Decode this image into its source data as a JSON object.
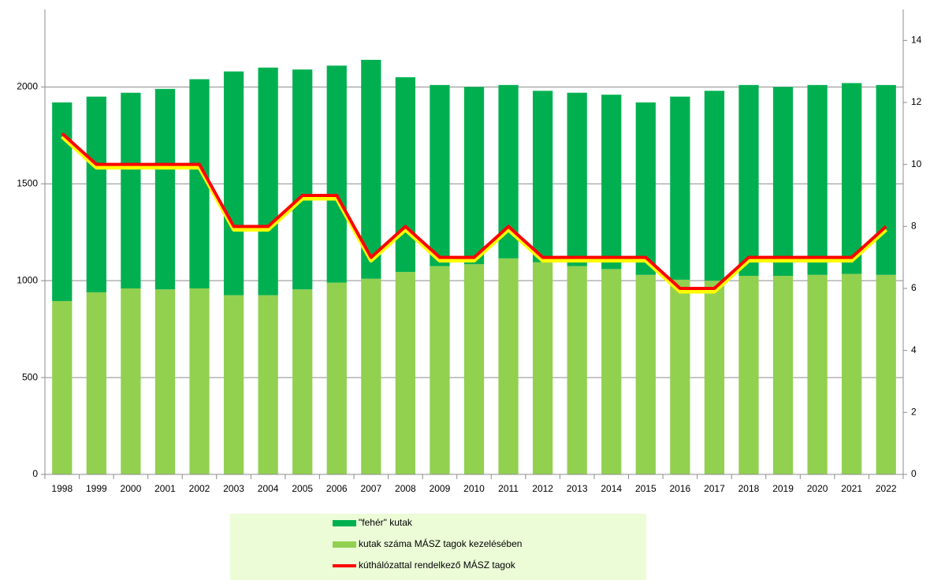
{
  "chart_data": {
    "type": "bar_line",
    "categories": [
      "1998",
      "1999",
      "2000",
      "2001",
      "2002",
      "2003",
      "2004",
      "2005",
      "2006",
      "2007",
      "2008",
      "2009",
      "2010",
      "2011",
      "2012",
      "2013",
      "2014",
      "2015",
      "2016",
      "2017",
      "2018",
      "2019",
      "2020",
      "2021",
      "2022"
    ],
    "series": [
      {
        "name": "kutak száma MÁSZ tagok kezelésében",
        "type": "bar",
        "color": "#92d050",
        "values": [
          895,
          940,
          960,
          955,
          960,
          925,
          925,
          955,
          990,
          1010,
          1045,
          1075,
          1085,
          1115,
          1095,
          1075,
          1060,
          1030,
          1005,
          1000,
          1025,
          1025,
          1030,
          1035,
          1030
        ]
      },
      {
        "name": "\"fehér\" kutak",
        "type": "bar",
        "color": "#00b050",
        "values": [
          1025,
          1010,
          1010,
          1035,
          1080,
          1155,
          1175,
          1135,
          1120,
          1130,
          1005,
          935,
          915,
          895,
          885,
          895,
          900,
          890,
          945,
          980,
          985,
          975,
          980,
          985,
          980
        ]
      },
      {
        "name": "kúthálózattal rendelkező MÁSZ tagok",
        "type": "line",
        "axis": "y2",
        "color": "#ff0000",
        "shadow_color": "#ffff00",
        "values": [
          11,
          10,
          10,
          10,
          10,
          8,
          8,
          9,
          9,
          7,
          8,
          7,
          7,
          8,
          7,
          7,
          7,
          7,
          6,
          6,
          7,
          7,
          7,
          7,
          8
        ]
      }
    ],
    "stacked": true,
    "ylim": [
      0,
      2400
    ],
    "yticks": [
      0,
      500,
      1000,
      1500,
      2000
    ],
    "y2lim": [
      0,
      15
    ],
    "y2ticks": [
      0,
      2,
      4,
      6,
      8,
      10,
      12,
      14
    ],
    "grid": true,
    "legend": "bottom"
  }
}
